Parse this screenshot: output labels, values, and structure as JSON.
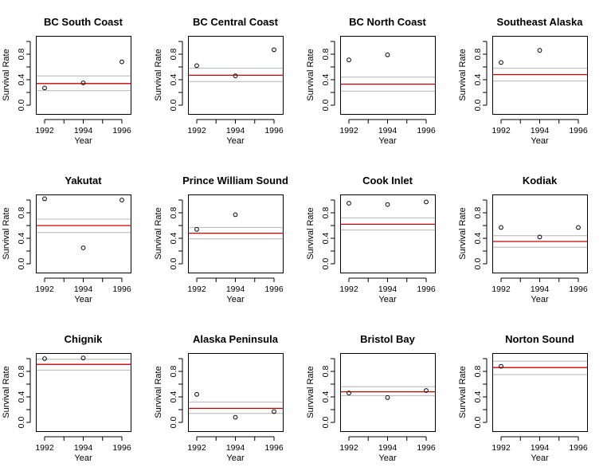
{
  "figure": {
    "colors": {
      "estimate_line": "#cc0000",
      "interval_line": "#b4b4b4",
      "point_stroke": "#000000",
      "axis": "#000000"
    }
  },
  "chart_data": [
    {
      "type": "scatter",
      "title": "BC South Coast",
      "xlabel": "Year",
      "ylabel": "Survival Rate",
      "x": [
        1992,
        1994,
        1996
      ],
      "y": [
        0.27,
        0.35,
        0.68
      ],
      "reference_lines": {
        "estimate": 0.34,
        "lower": 0.23,
        "upper": 0.46
      },
      "xlim": [
        1992,
        1996
      ],
      "ylim": [
        0,
        1
      ],
      "xticks": [
        1992,
        1994,
        1996
      ],
      "xtick_labels": [
        "1992",
        "1994",
        "1996"
      ],
      "yticks": [
        0,
        0.4,
        0.8
      ],
      "ytick_labels": [
        "0.0",
        "0.4",
        "0.8"
      ],
      "grid": false,
      "legend": "none"
    },
    {
      "type": "scatter",
      "title": "BC Central Coast",
      "xlabel": "Year",
      "ylabel": "Survival Rate",
      "x": [
        1992,
        1994,
        1996
      ],
      "y": [
        0.62,
        0.46,
        0.87
      ],
      "reference_lines": {
        "estimate": 0.47,
        "lower": 0.37,
        "upper": 0.58
      },
      "xlim": [
        1992,
        1996
      ],
      "ylim": [
        0,
        1
      ],
      "xticks": [
        1992,
        1994,
        1996
      ],
      "xtick_labels": [
        "1992",
        "1994",
        "1996"
      ],
      "yticks": [
        0,
        0.4,
        0.8
      ],
      "ytick_labels": [
        "0.0",
        "0.4",
        "0.8"
      ],
      "grid": false,
      "legend": "none"
    },
    {
      "type": "scatter",
      "title": "BC North Coast",
      "xlabel": "Year",
      "ylabel": "Survival Rate",
      "x": [
        1992,
        1994
      ],
      "y": [
        0.71,
        0.79
      ],
      "reference_lines": {
        "estimate": 0.33,
        "lower": 0.22,
        "upper": 0.44
      },
      "xlim": [
        1992,
        1996
      ],
      "ylim": [
        0,
        1
      ],
      "xticks": [
        1992,
        1994,
        1996
      ],
      "xtick_labels": [
        "1992",
        "1994",
        "1996"
      ],
      "yticks": [
        0,
        0.4,
        0.8
      ],
      "ytick_labels": [
        "0.0",
        "0.4",
        "0.8"
      ],
      "grid": false,
      "legend": "none"
    },
    {
      "type": "scatter",
      "title": "Southeast Alaska",
      "xlabel": "Year",
      "ylabel": "Survival Rate",
      "x": [
        1992,
        1994
      ],
      "y": [
        0.67,
        0.86
      ],
      "reference_lines": {
        "estimate": 0.48,
        "lower": 0.38,
        "upper": 0.58
      },
      "xlim": [
        1992,
        1996
      ],
      "ylim": [
        0,
        1
      ],
      "xticks": [
        1992,
        1994,
        1996
      ],
      "xtick_labels": [
        "1992",
        "1994",
        "1996"
      ],
      "yticks": [
        0,
        0.4,
        0.8
      ],
      "ytick_labels": [
        "0.0",
        "0.4",
        "0.8"
      ],
      "grid": false,
      "legend": "none"
    },
    {
      "type": "scatter",
      "title": "Yakutat",
      "xlabel": "Year",
      "ylabel": "Survival Rate",
      "x": [
        1992,
        1994,
        1996
      ],
      "y": [
        1.02,
        0.25,
        1.0
      ],
      "reference_lines": {
        "estimate": 0.6,
        "lower": 0.49,
        "upper": 0.7
      },
      "xlim": [
        1992,
        1996
      ],
      "ylim": [
        0,
        1
      ],
      "xticks": [
        1992,
        1994,
        1996
      ],
      "xtick_labels": [
        "1992",
        "1994",
        "1996"
      ],
      "yticks": [
        0,
        0.4,
        0.8
      ],
      "ytick_labels": [
        "0.0",
        "0.4",
        "0.8"
      ],
      "grid": false,
      "legend": "none"
    },
    {
      "type": "scatter",
      "title": "Prince William Sound",
      "xlabel": "Year",
      "ylabel": "Survival Rate",
      "x": [
        1992,
        1994
      ],
      "y": [
        0.54,
        0.77
      ],
      "reference_lines": {
        "estimate": 0.48,
        "lower": 0.39,
        "upper": 0.57
      },
      "xlim": [
        1992,
        1996
      ],
      "ylim": [
        0,
        1
      ],
      "xticks": [
        1992,
        1994,
        1996
      ],
      "xtick_labels": [
        "1992",
        "1994",
        "1996"
      ],
      "yticks": [
        0,
        0.4,
        0.8
      ],
      "ytick_labels": [
        "0.0",
        "0.4",
        "0.8"
      ],
      "grid": false,
      "legend": "none"
    },
    {
      "type": "scatter",
      "title": "Cook Inlet",
      "xlabel": "Year",
      "ylabel": "Survival Rate",
      "x": [
        1992,
        1994,
        1996
      ],
      "y": [
        0.95,
        0.93,
        0.97
      ],
      "reference_lines": {
        "estimate": 0.62,
        "lower": 0.53,
        "upper": 0.72
      },
      "xlim": [
        1992,
        1996
      ],
      "ylim": [
        0,
        1
      ],
      "xticks": [
        1992,
        1994,
        1996
      ],
      "xtick_labels": [
        "1992",
        "1994",
        "1996"
      ],
      "yticks": [
        0,
        0.4,
        0.8
      ],
      "ytick_labels": [
        "0.0",
        "0.4",
        "0.8"
      ],
      "grid": false,
      "legend": "none"
    },
    {
      "type": "scatter",
      "title": "Kodiak",
      "xlabel": "Year",
      "ylabel": "Survival Rate",
      "x": [
        1992,
        1994,
        1996
      ],
      "y": [
        0.57,
        0.42,
        0.57
      ],
      "reference_lines": {
        "estimate": 0.35,
        "lower": 0.26,
        "upper": 0.44
      },
      "xlim": [
        1992,
        1996
      ],
      "ylim": [
        0,
        1
      ],
      "xticks": [
        1992,
        1994,
        1996
      ],
      "xtick_labels": [
        "1992",
        "1994",
        "1996"
      ],
      "yticks": [
        0,
        0.4,
        0.8
      ],
      "ytick_labels": [
        "0.0",
        "0.4",
        "0.8"
      ],
      "grid": false,
      "legend": "none"
    },
    {
      "type": "scatter",
      "title": "Chignik",
      "xlabel": "Year",
      "ylabel": "Survival Rate",
      "x": [
        1992,
        1994
      ],
      "y": [
        1.0,
        1.01
      ],
      "reference_lines": {
        "estimate": 0.91,
        "lower": 0.82,
        "upper": 0.99
      },
      "xlim": [
        1992,
        1996
      ],
      "ylim": [
        0,
        1
      ],
      "xticks": [
        1992,
        1994,
        1996
      ],
      "xtick_labels": [
        "1992",
        "1994",
        "1996"
      ],
      "yticks": [
        0,
        0.4,
        0.8
      ],
      "ytick_labels": [
        "0.0",
        "0.4",
        "0.8"
      ],
      "grid": false,
      "legend": "none"
    },
    {
      "type": "scatter",
      "title": "Alaska Peninsula",
      "xlabel": "Year",
      "ylabel": "Survival Rate",
      "x": [
        1992,
        1994,
        1996
      ],
      "y": [
        0.44,
        0.08,
        0.17
      ],
      "reference_lines": {
        "estimate": 0.22,
        "lower": 0.14,
        "upper": 0.32
      },
      "xlim": [
        1992,
        1996
      ],
      "ylim": [
        0,
        1
      ],
      "xticks": [
        1992,
        1994,
        1996
      ],
      "xtick_labels": [
        "1992",
        "1994",
        "1996"
      ],
      "yticks": [
        0,
        0.4,
        0.8
      ],
      "ytick_labels": [
        "0.0",
        "0.4",
        "0.8"
      ],
      "grid": false,
      "legend": "none"
    },
    {
      "type": "scatter",
      "title": "Bristol Bay",
      "xlabel": "Year",
      "ylabel": "Survival Rate",
      "x": [
        1992,
        1994,
        1996
      ],
      "y": [
        0.46,
        0.39,
        0.5
      ],
      "reference_lines": {
        "estimate": 0.48,
        "lower": 0.42,
        "upper": 0.56
      },
      "xlim": [
        1992,
        1996
      ],
      "ylim": [
        0,
        1
      ],
      "xticks": [
        1992,
        1994,
        1996
      ],
      "xtick_labels": [
        "1992",
        "1994",
        "1996"
      ],
      "yticks": [
        0,
        0.4,
        0.8
      ],
      "ytick_labels": [
        "0.0",
        "0.4",
        "0.8"
      ],
      "grid": false,
      "legend": "none"
    },
    {
      "type": "scatter",
      "title": "Norton Sound",
      "xlabel": "Year",
      "ylabel": "Survival Rate",
      "x": [
        1992
      ],
      "y": [
        0.88
      ],
      "reference_lines": {
        "estimate": 0.86,
        "lower": 0.75,
        "upper": 0.96
      },
      "xlim": [
        1992,
        1996
      ],
      "ylim": [
        0,
        1
      ],
      "xticks": [
        1992,
        1994,
        1996
      ],
      "xtick_labels": [
        "1992",
        "1994",
        "1996"
      ],
      "yticks": [
        0,
        0.4,
        0.8
      ],
      "ytick_labels": [
        "0.0",
        "0.4",
        "0.8"
      ],
      "grid": false,
      "legend": "none"
    }
  ]
}
